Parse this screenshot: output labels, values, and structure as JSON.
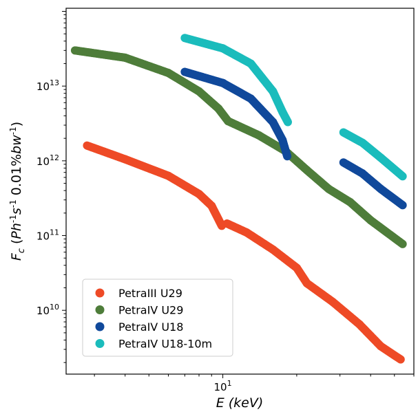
{
  "chart_data": {
    "type": "scatter",
    "xlabel": "E (keV)",
    "ylabel": "Fc (Ph-1s-1 0.01%bw-1)",
    "xscale": "log",
    "yscale": "log",
    "xlim": [
      2.3,
      60
    ],
    "ylim": [
      1400000000.0,
      110000000000000.0
    ],
    "xticks": [
      {
        "value": 10,
        "base": "10",
        "exp": "1"
      }
    ],
    "yticks": [
      {
        "value": 10000000000.0,
        "base": "10",
        "exp": "10"
      },
      {
        "value": 100000000000.0,
        "base": "10",
        "exp": "11"
      },
      {
        "value": 1000000000000.0,
        "base": "10",
        "exp": "12"
      },
      {
        "value": 10000000000000.0,
        "base": "10",
        "exp": "13"
      }
    ],
    "legend_position": "lower-left",
    "grid": false,
    "series": [
      {
        "name": "PetraIII U29",
        "color": "#ee4a26",
        "segments": [
          [
            [
              2.8,
              1600000000000.0
            ],
            [
              4.0,
              1050000000000.0
            ],
            [
              6.0,
              630000000000.0
            ],
            [
              8.0,
              360000000000.0
            ],
            [
              9.0,
              250000000000.0
            ],
            [
              9.9,
              135000000000.0
            ]
          ],
          [
            [
              10.4,
              145000000000.0
            ],
            [
              12.5,
              110000000000.0
            ],
            [
              16.0,
              65000000000.0
            ],
            [
              20.0,
              37000000000.0
            ],
            [
              22.0,
              23000000000.0
            ],
            [
              28.0,
              13000000000.0
            ],
            [
              36.0,
              6500000000.0
            ],
            [
              44.0,
              3300000000.0
            ],
            [
              53.0,
              2200000000.0
            ]
          ]
        ]
      },
      {
        "name": "PetraIV U29",
        "color": "#4e7d3a",
        "segments": [
          [
            [
              2.5,
              30000000000000.0
            ],
            [
              4.0,
              24000000000000.0
            ],
            [
              6.0,
              15000000000000.0
            ],
            [
              8.0,
              8500000000000.0
            ],
            [
              9.6,
              5000000000000.0
            ],
            [
              10.5,
              3400000000000.0
            ],
            [
              14.0,
              2200000000000.0
            ],
            [
              18.0,
              1350000000000.0
            ],
            [
              22.0,
              750000000000.0
            ],
            [
              27.0,
              420000000000.0
            ],
            [
              33.0,
              280000000000.0
            ],
            [
              40.0,
              160000000000.0
            ],
            [
              54.0,
              77000000000.0
            ]
          ]
        ]
      },
      {
        "name": "PetraIV U18",
        "color": "#10499b",
        "segments": [
          [
            [
              7.0,
              15500000000000.0
            ],
            [
              10.0,
              11000000000000.0
            ],
            [
              13.0,
              6800000000000.0
            ],
            [
              16.0,
              3300000000000.0
            ],
            [
              17.5,
              1900000000000.0
            ],
            [
              18.3,
              1150000000000.0
            ]
          ],
          [
            [
              31.0,
              950000000000.0
            ],
            [
              37.0,
              680000000000.0
            ],
            [
              44.0,
              420000000000.0
            ],
            [
              54.0,
              255000000000.0
            ]
          ]
        ]
      },
      {
        "name": "PetraIV U18-10m",
        "color": "#1bbcbc",
        "segments": [
          [
            [
              7.0,
              44000000000000.0
            ],
            [
              10.0,
              32000000000000.0
            ],
            [
              13.0,
              20000000000000.0
            ],
            [
              16.0,
              8500000000000.0
            ],
            [
              17.5,
              4500000000000.0
            ],
            [
              18.4,
              3300000000000.0
            ]
          ],
          [
            [
              31.0,
              2400000000000.0
            ],
            [
              37.0,
              1750000000000.0
            ],
            [
              44.0,
              1100000000000.0
            ],
            [
              54.0,
              620000000000.0
            ]
          ]
        ]
      }
    ]
  }
}
